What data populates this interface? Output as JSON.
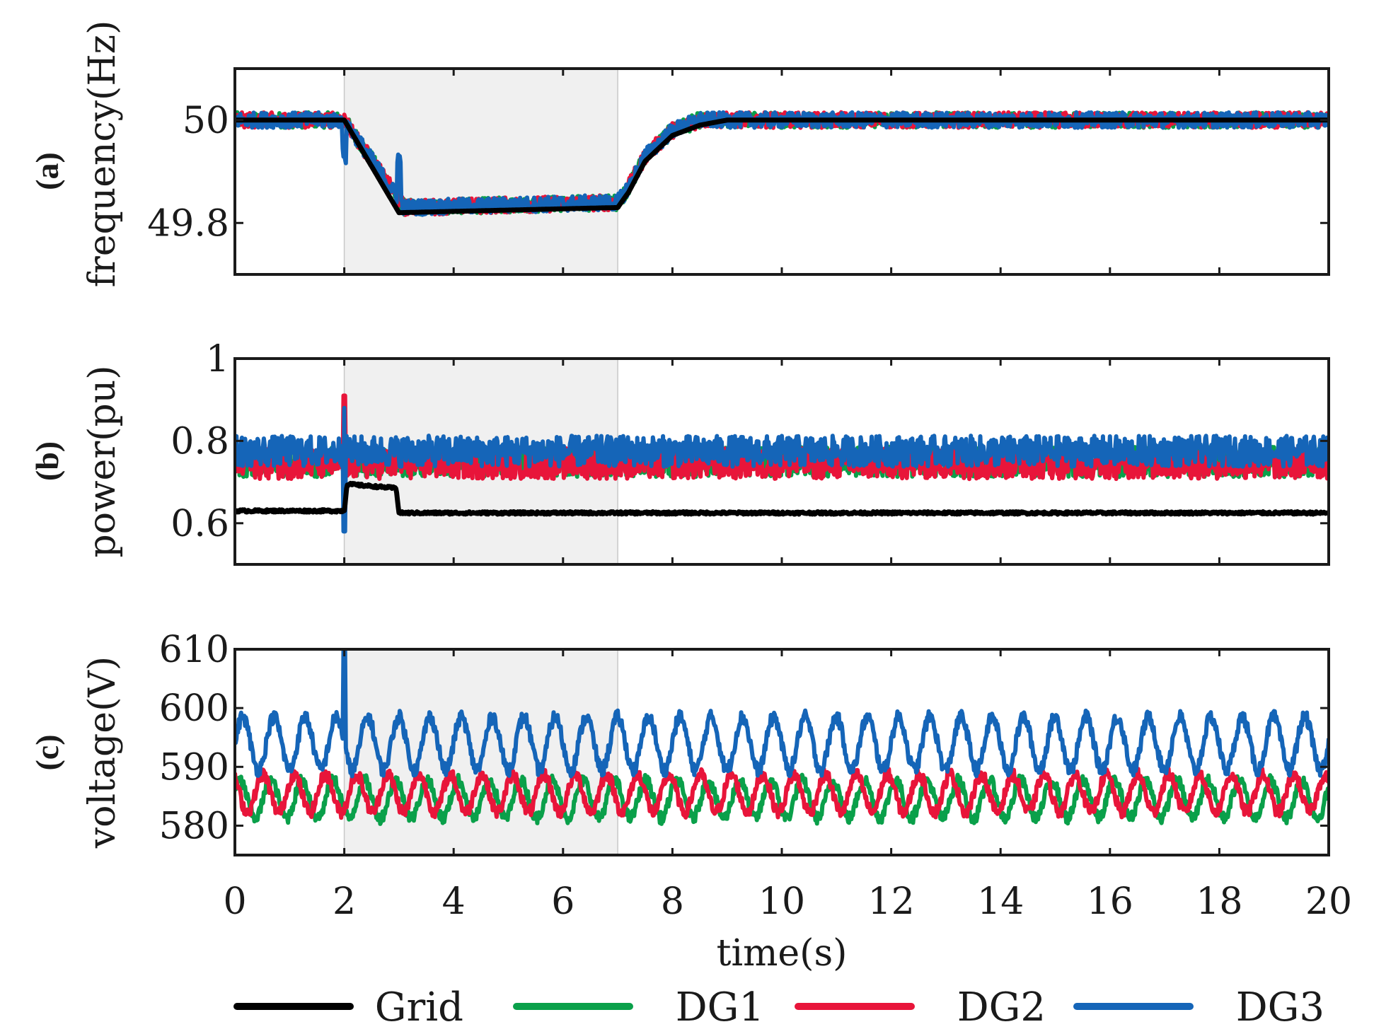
{
  "chart_data": [
    {
      "type": "line",
      "panel": "(a)",
      "ylabel": "frequency(Hz)",
      "yticks": [
        49.8,
        50
      ],
      "ylim": [
        49.7,
        50.1
      ],
      "xlim": [
        0,
        20
      ],
      "shaded_interval": [
        2,
        7
      ],
      "series": [
        {
          "name": "Grid",
          "color": "#000000",
          "x": [
            0,
            2,
            3,
            7,
            7.2,
            7.5,
            8,
            8.5,
            9,
            10,
            20
          ],
          "y": [
            50.0,
            50.0,
            49.82,
            49.83,
            49.86,
            49.92,
            49.97,
            49.99,
            50.0,
            50.0,
            50.0
          ]
        },
        {
          "name": "DG1",
          "color": "#0aa04a",
          "x": [
            0,
            2,
            3.1,
            7,
            7.2,
            7.5,
            8,
            8.5,
            9,
            10,
            20
          ],
          "y": [
            50.0,
            50.0,
            49.83,
            49.84,
            49.87,
            49.93,
            49.98,
            50.0,
            50.0,
            50.0,
            50.0
          ]
        },
        {
          "name": "DG2",
          "color": "#e8153a",
          "x": [
            0,
            2,
            3.1,
            7,
            7.2,
            7.5,
            8,
            8.5,
            9,
            10,
            20
          ],
          "y": [
            50.0,
            50.0,
            49.83,
            49.84,
            49.87,
            49.93,
            49.98,
            50.0,
            50.0,
            50.0,
            50.0
          ]
        },
        {
          "name": "DG3",
          "color": "#1565b8",
          "x": [
            0,
            2,
            3.1,
            7,
            7.2,
            7.5,
            8,
            8.5,
            9,
            10,
            20
          ],
          "y": [
            50.0,
            50.0,
            49.83,
            49.84,
            49.87,
            49.93,
            49.98,
            50.0,
            50.0,
            50.0,
            50.0
          ]
        }
      ]
    },
    {
      "type": "line",
      "panel": "(b)",
      "ylabel": "power(pu)",
      "yticks": [
        0.6,
        0.8,
        1
      ],
      "ylim": [
        0.5,
        1.0
      ],
      "xlim": [
        0,
        20
      ],
      "shaded_interval": [
        2,
        7
      ],
      "series": [
        {
          "name": "Grid",
          "color": "#000000",
          "x": [
            0,
            2,
            2.05,
            2.5,
            2.95,
            3.0,
            20
          ],
          "y": [
            0.63,
            0.63,
            0.695,
            0.69,
            0.685,
            0.625,
            0.625
          ]
        },
        {
          "name": "DG1",
          "color": "#0aa04a",
          "x": [
            0,
            20
          ],
          "y": [
            0.75,
            0.75
          ]
        },
        {
          "name": "DG2",
          "color": "#e8153a",
          "x": [
            0,
            20
          ],
          "y": [
            0.745,
            0.745
          ]
        },
        {
          "name": "DG3",
          "color": "#1565b8",
          "x": [
            0,
            20
          ],
          "y": [
            0.775,
            0.775
          ]
        }
      ]
    },
    {
      "type": "line",
      "panel": "(c)",
      "ylabel": "voltage(V)",
      "yticks": [
        580,
        590,
        600,
        610
      ],
      "ylim": [
        575,
        610
      ],
      "xlim": [
        0,
        20
      ],
      "shaded_interval": [
        2,
        7
      ],
      "series": [
        {
          "name": "Grid",
          "color": "#000000",
          "x": [],
          "y": []
        },
        {
          "name": "DG1",
          "color": "#0aa04a",
          "x": [
            0,
            20
          ],
          "y": [
            584.5,
            584.5
          ]
        },
        {
          "name": "DG2",
          "color": "#e8153a",
          "x": [
            0,
            20
          ],
          "y": [
            585.5,
            585.5
          ]
        },
        {
          "name": "DG3",
          "color": "#1565b8",
          "x": [
            0,
            20
          ],
          "y": [
            594,
            594
          ]
        }
      ]
    }
  ],
  "xaxis": {
    "label": "time(s)",
    "ticks": [
      0,
      2,
      4,
      6,
      8,
      10,
      12,
      14,
      16,
      18,
      20
    ]
  },
  "legend": [
    {
      "label": "Grid",
      "color": "#000000"
    },
    {
      "label": "DG1",
      "color": "#0aa04a"
    },
    {
      "label": "DG2",
      "color": "#e8153a"
    },
    {
      "label": "DG3",
      "color": "#1565b8"
    }
  ],
  "shading_color": "#f0f0f0"
}
